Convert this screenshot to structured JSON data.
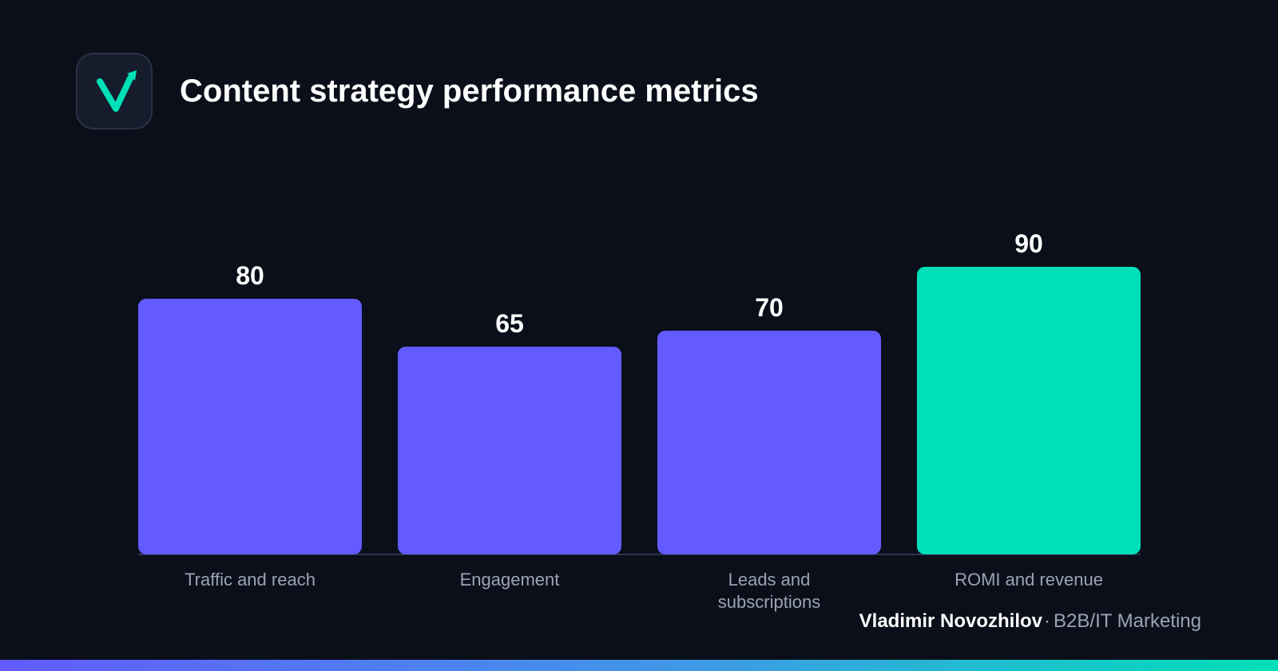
{
  "header": {
    "title": "Content strategy performance metrics"
  },
  "logo": {
    "icon": "check-arrow-icon",
    "color": "#00e0b8"
  },
  "chart_data": {
    "type": "bar",
    "title": "Content strategy performance metrics",
    "categories": [
      "Traffic and reach",
      "Engagement",
      "Leads and subscriptions",
      "ROMI and revenue"
    ],
    "category_lines": [
      [
        "Traffic and reach"
      ],
      [
        "Engagement"
      ],
      [
        "Leads and",
        "subscriptions"
      ],
      [
        "ROMI and revenue"
      ]
    ],
    "values": [
      80,
      65,
      70,
      90
    ],
    "value_labels": [
      "80",
      "65",
      "70",
      "90"
    ],
    "bar_colors": [
      "#635bff",
      "#635bff",
      "#635bff",
      "#00e0b8"
    ],
    "ylim": [
      0,
      100
    ],
    "grid": false,
    "legend": "none",
    "xlabel": "",
    "ylabel": ""
  },
  "footer": {
    "author": "Vladimir Novozhilov",
    "separator": "·",
    "role": "B2B/IT Marketing"
  },
  "colors": {
    "background": "#0b0f1a",
    "primary_bar": "#635bff",
    "highlight_bar": "#00e0b8",
    "axis_line": "#2e3550",
    "category_label": "#9aa3b5"
  }
}
